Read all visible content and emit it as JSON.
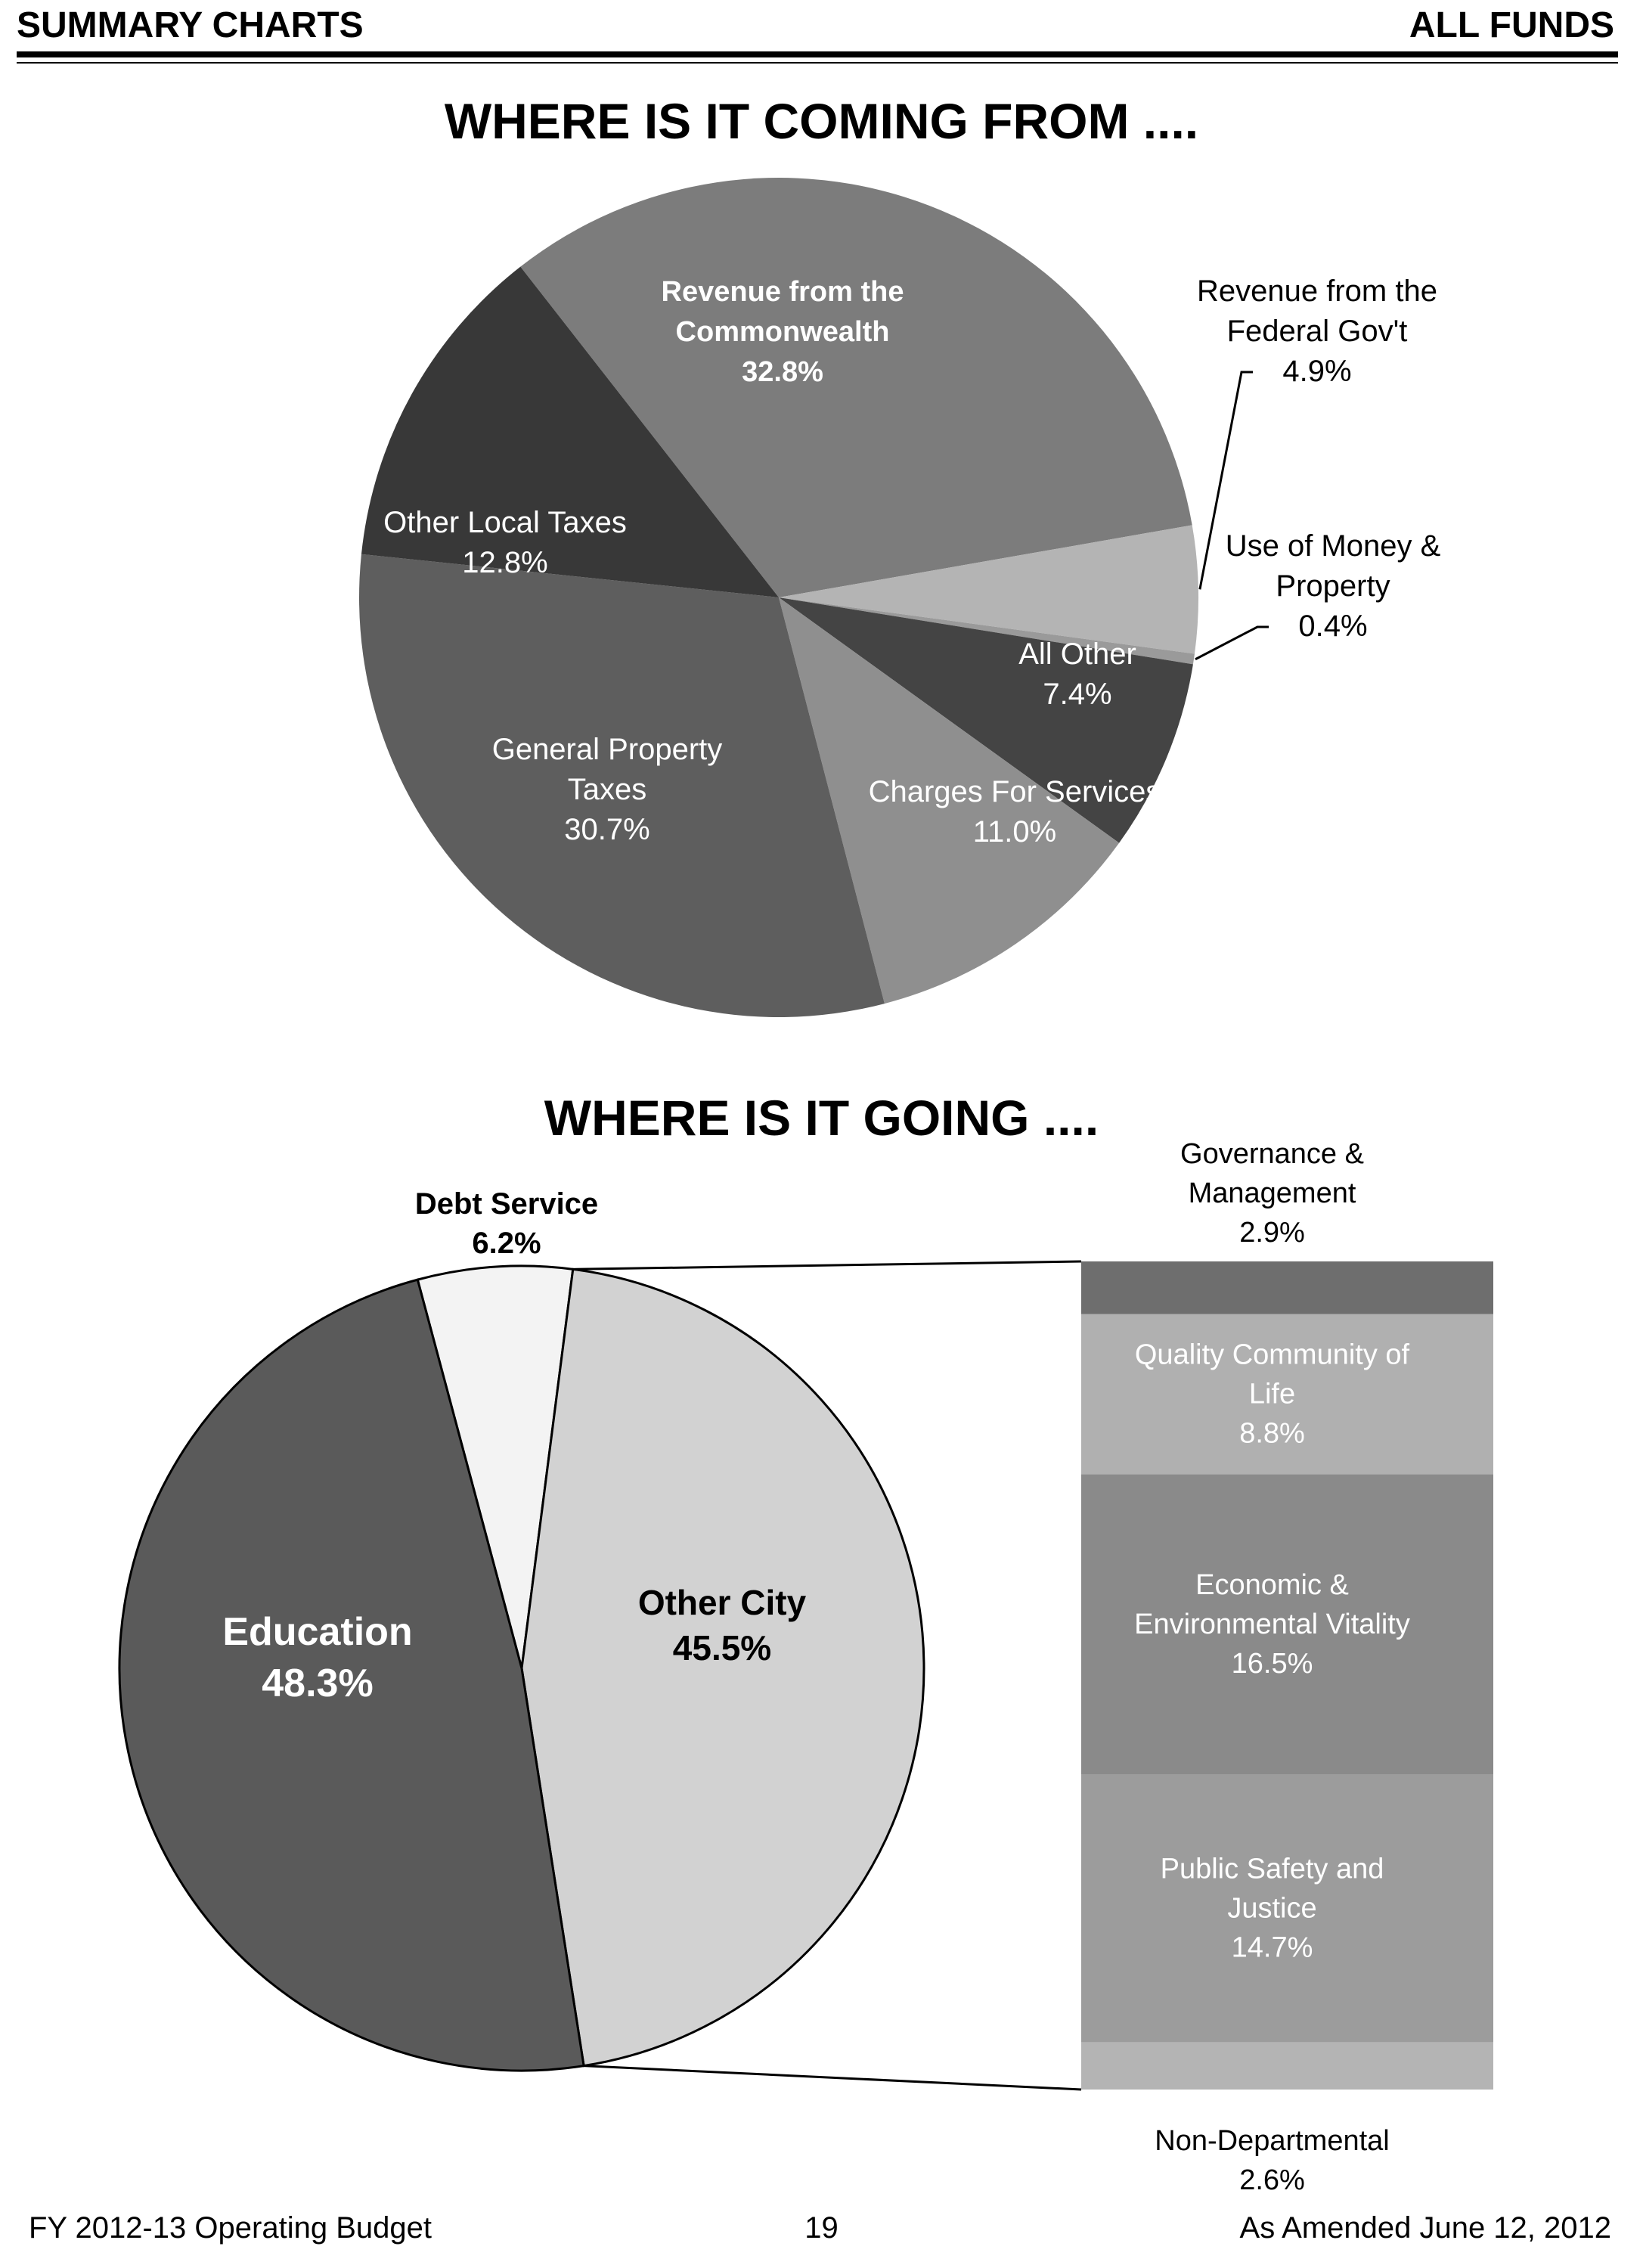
{
  "header": {
    "left": "SUMMARY CHARTS",
    "right": "ALL FUNDS"
  },
  "footer": {
    "left": "FY 2012-13 Operating Budget",
    "center": "19",
    "right": "As Amended June 12, 2012"
  },
  "chart_data": [
    {
      "type": "pie",
      "title": "WHERE IS IT COMING FROM ....",
      "slices": [
        {
          "label": [
            "Revenue from the",
            "Commonwealth"
          ],
          "value_label": "32.8%",
          "value": 32.8,
          "color": "#7c7c7c"
        },
        {
          "label": [
            "Revenue from the",
            "Federal Gov't"
          ],
          "value_label": "4.9%",
          "value": 4.9,
          "color": "#b4b4b4"
        },
        {
          "label": [
            "Use of Money &",
            "Property"
          ],
          "value_label": "0.4%",
          "value": 0.4,
          "color": "#9a9a9a"
        },
        {
          "label": [
            "All Other"
          ],
          "value_label": "7.4%",
          "value": 7.4,
          "color": "#444444"
        },
        {
          "label": [
            "Charges For Services"
          ],
          "value_label": "11.0%",
          "value": 11.0,
          "color": "#8f8f8f"
        },
        {
          "label": [
            "General Property",
            "Taxes"
          ],
          "value_label": "30.7%",
          "value": 30.7,
          "color": "#5e5e5e"
        },
        {
          "label": [
            "Other Local Taxes"
          ],
          "value_label": "12.8%",
          "value": 12.8,
          "color": "#383838"
        }
      ]
    },
    {
      "type": "pie",
      "title": "WHERE IS IT GOING ....",
      "slices": [
        {
          "label": [
            "Debt Service"
          ],
          "value_label": "6.2%",
          "value": 6.2,
          "color": "#f3f3f3"
        },
        {
          "label": [
            "Other City"
          ],
          "value_label": "45.5%",
          "value": 45.5,
          "color": "#d2d2d2"
        },
        {
          "label": [
            "Education"
          ],
          "value_label": "48.3%",
          "value": 48.3,
          "color": "#5a5a5a"
        }
      ],
      "breakdown_of": "Other City",
      "breakdown": [
        {
          "label": [
            "Governance &",
            "Management"
          ],
          "value_label": "2.9%",
          "value": 2.9,
          "color": "#6e6e6e"
        },
        {
          "label": [
            "Quality Community of",
            "Life"
          ],
          "value_label": "8.8%",
          "value": 8.8,
          "color": "#b0b0b0"
        },
        {
          "label": [
            "Economic &",
            "Environmental Vitality"
          ],
          "value_label": "16.5%",
          "value": 16.5,
          "color": "#8a8a8a"
        },
        {
          "label": [
            "Public Safety and",
            "Justice"
          ],
          "value_label": "14.7%",
          "value": 14.7,
          "color": "#9c9c9c"
        },
        {
          "label": [
            "Non-Departmental"
          ],
          "value_label": "2.6%",
          "value": 2.6,
          "color": "#b4b4b4"
        }
      ]
    }
  ]
}
